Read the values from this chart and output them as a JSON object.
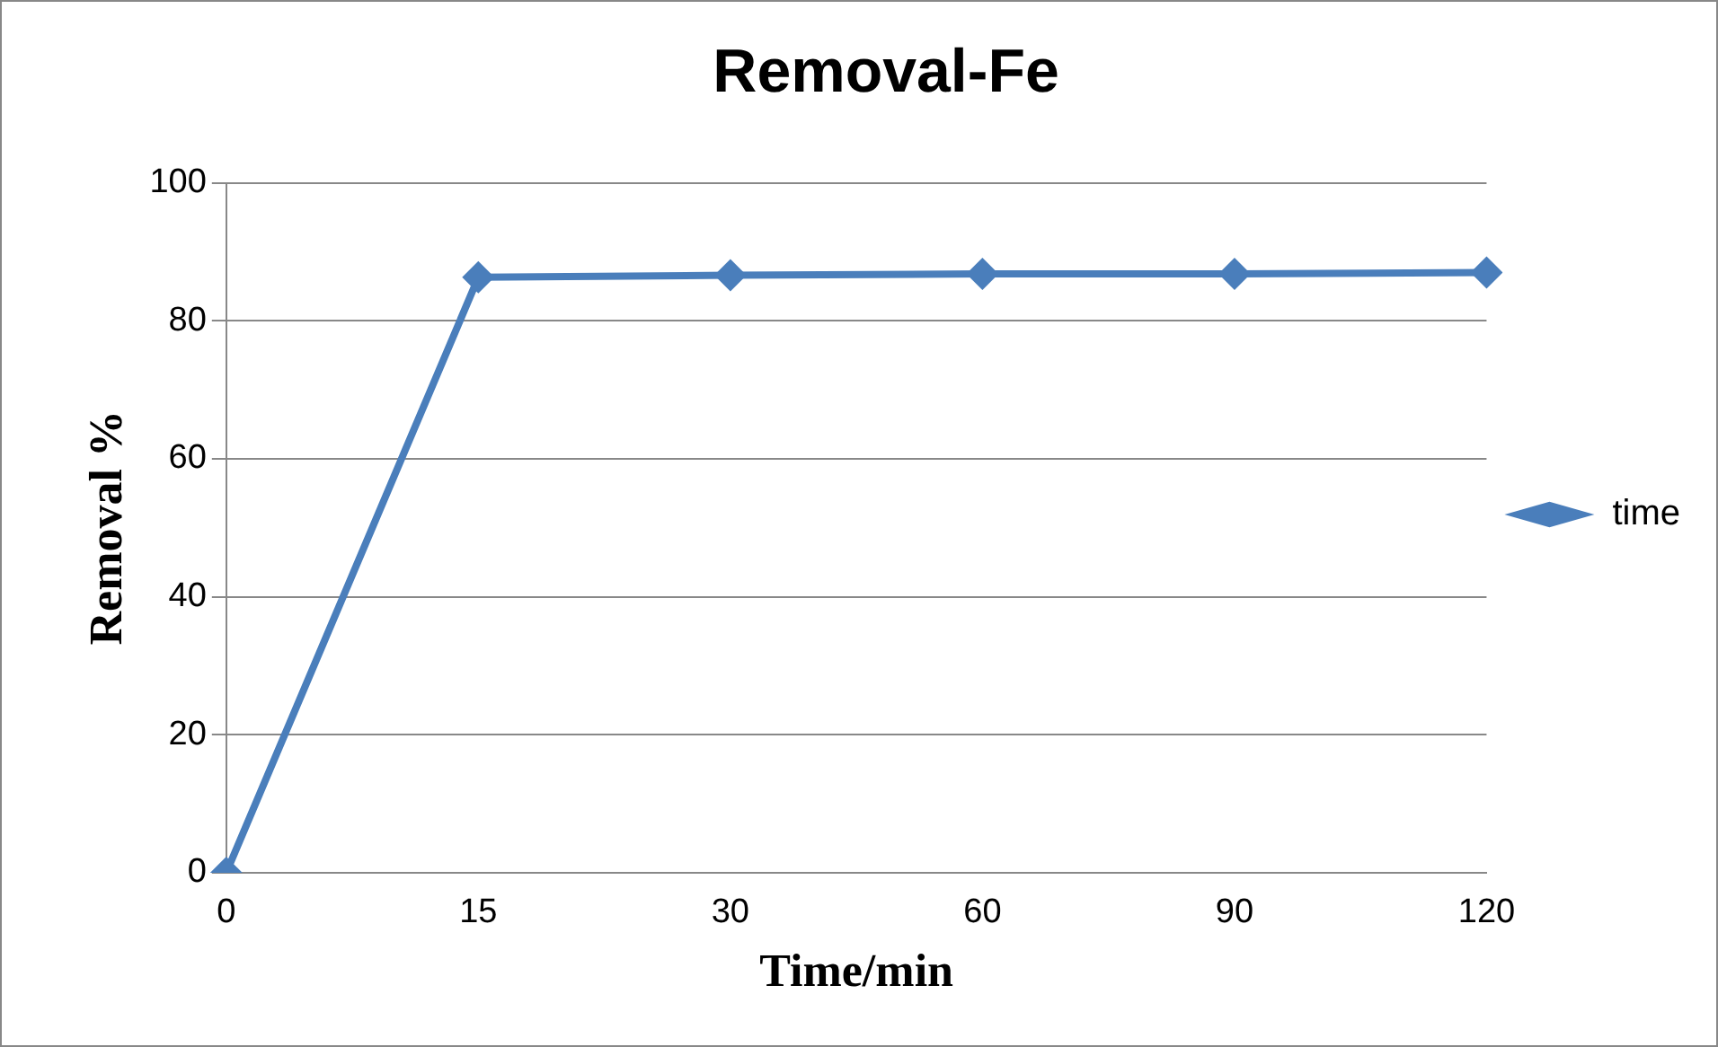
{
  "chart_data": {
    "type": "line",
    "title": "Removal-Fe",
    "xlabel": "Time/min",
    "ylabel": "Removal %",
    "categories": [
      "0",
      "15",
      "30",
      "60",
      "90",
      "120"
    ],
    "series": [
      {
        "name": "time",
        "color": "#4a7ebb",
        "values": [
          0,
          86.3,
          86.6,
          86.8,
          86.8,
          87.0
        ]
      }
    ],
    "ylim": [
      0,
      100
    ],
    "yticks": [
      0,
      20,
      40,
      60,
      80,
      100
    ],
    "grid": "y",
    "legend": "right",
    "marker": "diamond",
    "line_style": "solid"
  }
}
